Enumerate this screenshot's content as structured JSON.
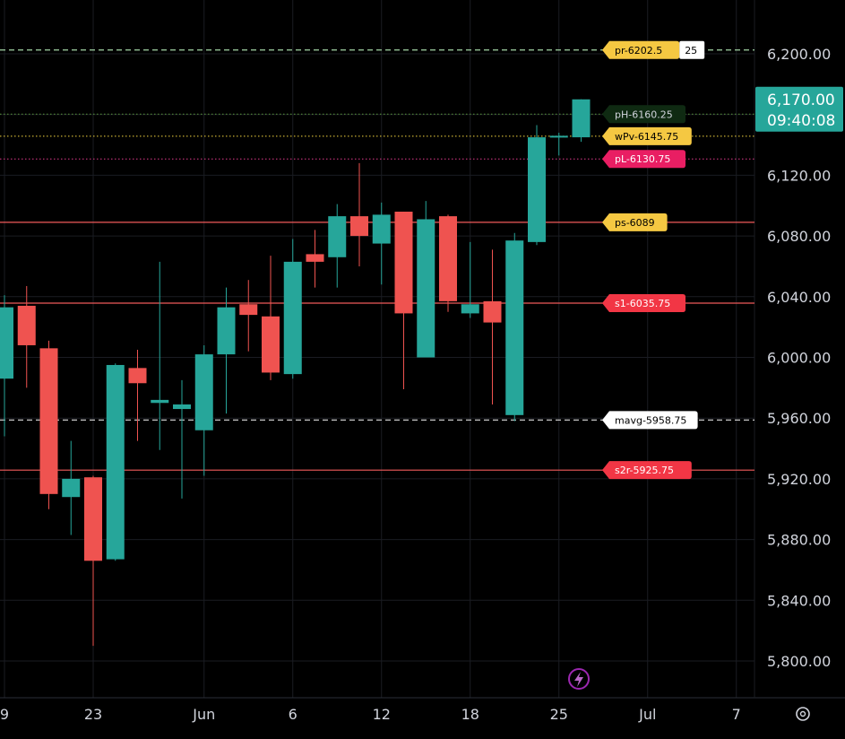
{
  "chart_data": {
    "type": "candlestick",
    "y_axis": {
      "range": [
        5780,
        6240
      ],
      "ticks": [
        5800,
        5840,
        5880,
        5920,
        5960,
        6000,
        6040,
        6080,
        6120,
        6200
      ],
      "tick_labels": [
        "5,800.00",
        "5,840.00",
        "5,880.00",
        "5,920.00",
        "5,960.00",
        "6,000.00",
        "6,040.00",
        "6,080.00",
        "6,120.00",
        "6,200.00"
      ]
    },
    "x_axis": {
      "labels": [
        {
          "label": "9",
          "index": 0
        },
        {
          "label": "23",
          "index": 4
        },
        {
          "label": "Jun",
          "index": 9
        },
        {
          "label": "6",
          "index": 13
        },
        {
          "label": "12",
          "index": 17
        },
        {
          "label": "18",
          "index": 21
        },
        {
          "label": "25",
          "index": 25
        },
        {
          "label": "Jul",
          "index": 29
        },
        {
          "label": "7",
          "index": 33
        }
      ]
    },
    "candles": [
      {
        "o": 5986,
        "h": 6041,
        "l": 5948,
        "c": 6033
      },
      {
        "o": 6034,
        "h": 6047,
        "l": 5980,
        "c": 6008
      },
      {
        "o": 6006,
        "h": 6011,
        "l": 5900,
        "c": 5910
      },
      {
        "o": 5908,
        "h": 5945,
        "l": 5883,
        "c": 5920
      },
      {
        "o": 5921,
        "h": 5922,
        "l": 5810,
        "c": 5866
      },
      {
        "o": 5867,
        "h": 5996,
        "l": 5866,
        "c": 5995
      },
      {
        "o": 5993,
        "h": 6005,
        "l": 5945,
        "c": 5983
      },
      {
        "o": 5970,
        "h": 6063,
        "l": 5939,
        "c": 5972
      },
      {
        "o": 5966,
        "h": 5985,
        "l": 5907,
        "c": 5969
      },
      {
        "o": 5952,
        "h": 6008,
        "l": 5922,
        "c": 6002
      },
      {
        "o": 6002,
        "h": 6046,
        "l": 5963,
        "c": 6033
      },
      {
        "o": 6035,
        "h": 6051,
        "l": 6004,
        "c": 6028
      },
      {
        "o": 6027,
        "h": 6067,
        "l": 5985,
        "c": 5990
      },
      {
        "o": 5989,
        "h": 6078,
        "l": 5986,
        "c": 6063
      },
      {
        "o": 6068,
        "h": 6084,
        "l": 6046,
        "c": 6063
      },
      {
        "o": 6066,
        "h": 6101,
        "l": 6046,
        "c": 6093
      },
      {
        "o": 6093,
        "h": 6128,
        "l": 6060,
        "c": 6080
      },
      {
        "o": 6075,
        "h": 6102,
        "l": 6048,
        "c": 6094
      },
      {
        "o": 6096,
        "h": 6092,
        "l": 5979,
        "c": 6029
      },
      {
        "o": 6000,
        "h": 6103,
        "l": 6000,
        "c": 6091
      },
      {
        "o": 6093,
        "h": 6094,
        "l": 6030,
        "c": 6037
      },
      {
        "o": 6029,
        "h": 6076,
        "l": 6026,
        "c": 6035
      },
      {
        "o": 6037,
        "h": 6071,
        "l": 5969,
        "c": 6023
      },
      {
        "o": 5962,
        "h": 6082,
        "l": 5958,
        "c": 6077
      },
      {
        "o": 6076,
        "h": 6153,
        "l": 6074,
        "c": 6145
      },
      {
        "o": 6146,
        "h": 6148,
        "l": 6133,
        "c": 6146
      },
      {
        "o": 6145,
        "h": 6170,
        "l": 6142,
        "c": 6170
      }
    ],
    "levels": [
      {
        "label": "pr-6202.5",
        "extra": "25",
        "value": 6202.5,
        "line_color": "#a5d6a7",
        "tag_bg": "#f5c842",
        "tag_fg": "#000000",
        "dash": "dashed"
      },
      {
        "label": "pH-6160.25",
        "value": 6160.25,
        "line_color": "#5a9a3a",
        "tag_bg": "#0f2a12",
        "tag_fg": "#d1d4dc",
        "dash": "dotted"
      },
      {
        "label": "wPv-6145.75",
        "value": 6145.75,
        "line_color": "#f5d742",
        "tag_bg": "#f5c842",
        "tag_fg": "#000000",
        "dash": "dotted"
      },
      {
        "label": "pL-6130.75",
        "value": 6130.75,
        "line_color": "#e03a8c",
        "tag_bg": "#e91e63",
        "tag_fg": "#ffffff",
        "dash": "dotted"
      },
      {
        "label": "ps-6089",
        "value": 6089,
        "line_color": "#f05a5a",
        "tag_bg": "#f5c842",
        "tag_fg": "#000000",
        "dash": "solid"
      },
      {
        "label": "s1-6035.75",
        "value": 6035.75,
        "line_color": "#f05a5a",
        "tag_bg": "#f23645",
        "tag_fg": "#ffffff",
        "dash": "solid"
      },
      {
        "label": "mavg-5958.75",
        "value": 5958.75,
        "line_color": "#e0e0e0",
        "tag_bg": "#ffffff",
        "tag_fg": "#000000",
        "dash": "dashed"
      },
      {
        "label": "s2r-5925.75",
        "value": 5925.75,
        "line_color": "#f05a5a",
        "tag_bg": "#f23645",
        "tag_fg": "#ffffff",
        "dash": "solid"
      }
    ],
    "current_price": {
      "value": "6,170.00",
      "time": "09:40:08",
      "color": "#26a69a"
    },
    "colors": {
      "up": "#26a69a",
      "down": "#ef5350",
      "grid": "#1a1c22",
      "axis_text": "#d1d4dc"
    }
  }
}
